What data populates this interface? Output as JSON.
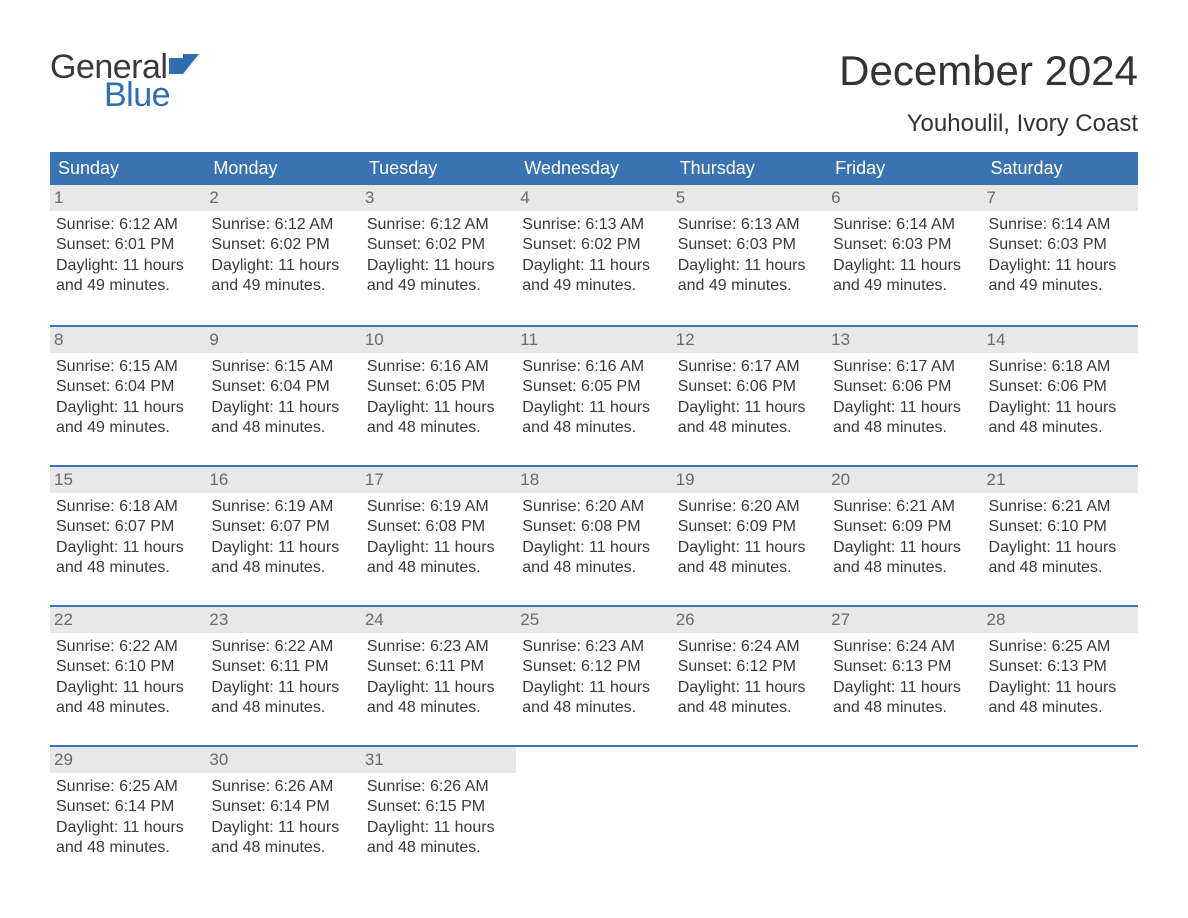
{
  "logo": {
    "word1": "General",
    "word2": "Blue",
    "accent": "#2f6eaf"
  },
  "title": "December 2024",
  "location": "Youhoulil, Ivory Coast",
  "colors": {
    "header_bg": "#3a73b2",
    "daynum_bg": "#e8e8e8",
    "text": "#3a3a3a",
    "daynum_text": "#6a6a6a",
    "week_border": "#3a73b2"
  },
  "dow": [
    "Sunday",
    "Monday",
    "Tuesday",
    "Wednesday",
    "Thursday",
    "Friday",
    "Saturday"
  ],
  "weeks": [
    [
      {
        "n": "1",
        "sr": "6:12 AM",
        "ss": "6:01 PM",
        "dl": "11 hours and 49 minutes."
      },
      {
        "n": "2",
        "sr": "6:12 AM",
        "ss": "6:02 PM",
        "dl": "11 hours and 49 minutes."
      },
      {
        "n": "3",
        "sr": "6:12 AM",
        "ss": "6:02 PM",
        "dl": "11 hours and 49 minutes."
      },
      {
        "n": "4",
        "sr": "6:13 AM",
        "ss": "6:02 PM",
        "dl": "11 hours and 49 minutes."
      },
      {
        "n": "5",
        "sr": "6:13 AM",
        "ss": "6:03 PM",
        "dl": "11 hours and 49 minutes."
      },
      {
        "n": "6",
        "sr": "6:14 AM",
        "ss": "6:03 PM",
        "dl": "11 hours and 49 minutes."
      },
      {
        "n": "7",
        "sr": "6:14 AM",
        "ss": "6:03 PM",
        "dl": "11 hours and 49 minutes."
      }
    ],
    [
      {
        "n": "8",
        "sr": "6:15 AM",
        "ss": "6:04 PM",
        "dl": "11 hours and 49 minutes."
      },
      {
        "n": "9",
        "sr": "6:15 AM",
        "ss": "6:04 PM",
        "dl": "11 hours and 48 minutes."
      },
      {
        "n": "10",
        "sr": "6:16 AM",
        "ss": "6:05 PM",
        "dl": "11 hours and 48 minutes."
      },
      {
        "n": "11",
        "sr": "6:16 AM",
        "ss": "6:05 PM",
        "dl": "11 hours and 48 minutes."
      },
      {
        "n": "12",
        "sr": "6:17 AM",
        "ss": "6:06 PM",
        "dl": "11 hours and 48 minutes."
      },
      {
        "n": "13",
        "sr": "6:17 AM",
        "ss": "6:06 PM",
        "dl": "11 hours and 48 minutes."
      },
      {
        "n": "14",
        "sr": "6:18 AM",
        "ss": "6:06 PM",
        "dl": "11 hours and 48 minutes."
      }
    ],
    [
      {
        "n": "15",
        "sr": "6:18 AM",
        "ss": "6:07 PM",
        "dl": "11 hours and 48 minutes."
      },
      {
        "n": "16",
        "sr": "6:19 AM",
        "ss": "6:07 PM",
        "dl": "11 hours and 48 minutes."
      },
      {
        "n": "17",
        "sr": "6:19 AM",
        "ss": "6:08 PM",
        "dl": "11 hours and 48 minutes."
      },
      {
        "n": "18",
        "sr": "6:20 AM",
        "ss": "6:08 PM",
        "dl": "11 hours and 48 minutes."
      },
      {
        "n": "19",
        "sr": "6:20 AM",
        "ss": "6:09 PM",
        "dl": "11 hours and 48 minutes."
      },
      {
        "n": "20",
        "sr": "6:21 AM",
        "ss": "6:09 PM",
        "dl": "11 hours and 48 minutes."
      },
      {
        "n": "21",
        "sr": "6:21 AM",
        "ss": "6:10 PM",
        "dl": "11 hours and 48 minutes."
      }
    ],
    [
      {
        "n": "22",
        "sr": "6:22 AM",
        "ss": "6:10 PM",
        "dl": "11 hours and 48 minutes."
      },
      {
        "n": "23",
        "sr": "6:22 AM",
        "ss": "6:11 PM",
        "dl": "11 hours and 48 minutes."
      },
      {
        "n": "24",
        "sr": "6:23 AM",
        "ss": "6:11 PM",
        "dl": "11 hours and 48 minutes."
      },
      {
        "n": "25",
        "sr": "6:23 AM",
        "ss": "6:12 PM",
        "dl": "11 hours and 48 minutes."
      },
      {
        "n": "26",
        "sr": "6:24 AM",
        "ss": "6:12 PM",
        "dl": "11 hours and 48 minutes."
      },
      {
        "n": "27",
        "sr": "6:24 AM",
        "ss": "6:13 PM",
        "dl": "11 hours and 48 minutes."
      },
      {
        "n": "28",
        "sr": "6:25 AM",
        "ss": "6:13 PM",
        "dl": "11 hours and 48 minutes."
      }
    ],
    [
      {
        "n": "29",
        "sr": "6:25 AM",
        "ss": "6:14 PM",
        "dl": "11 hours and 48 minutes."
      },
      {
        "n": "30",
        "sr": "6:26 AM",
        "ss": "6:14 PM",
        "dl": "11 hours and 48 minutes."
      },
      {
        "n": "31",
        "sr": "6:26 AM",
        "ss": "6:15 PM",
        "dl": "11 hours and 48 minutes."
      },
      null,
      null,
      null,
      null
    ]
  ],
  "labels": {
    "sunrise": "Sunrise: ",
    "sunset": "Sunset: ",
    "daylight": "Daylight: "
  }
}
